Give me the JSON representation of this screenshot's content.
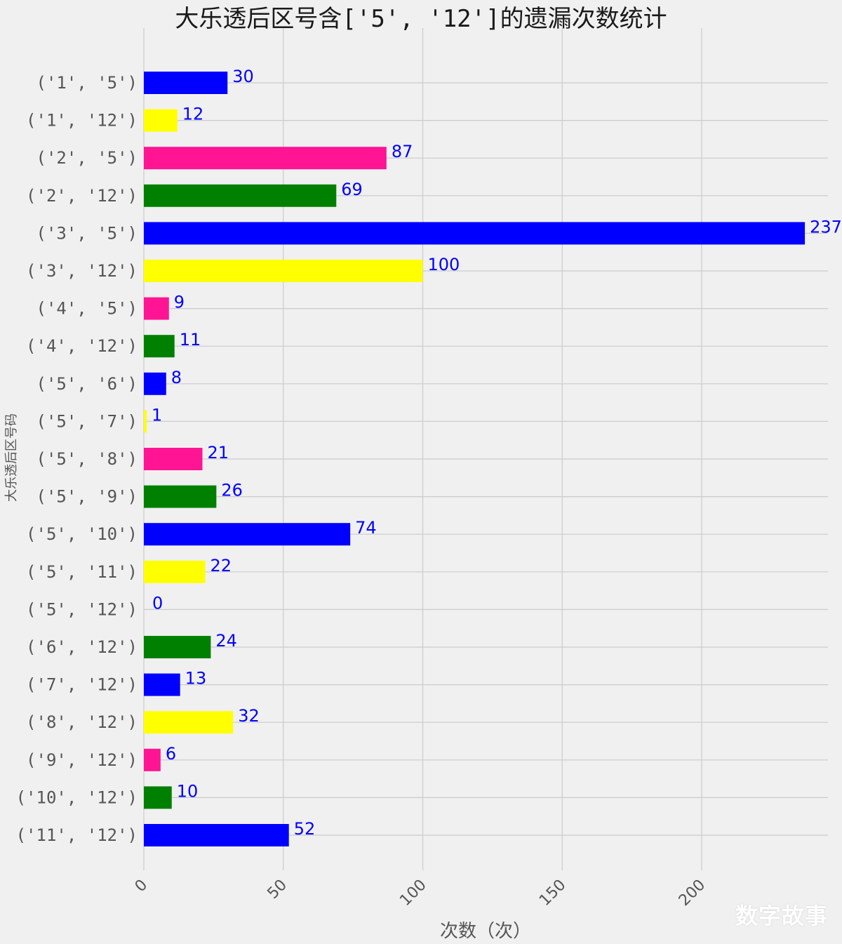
{
  "chart_data": {
    "type": "bar",
    "orientation": "horizontal",
    "title": "大乐透后区号含['5', '12']的遗漏次数统计",
    "xlabel": "次数（次）",
    "ylabel": "大乐透后区号码",
    "categories": [
      "('1', '5')",
      "('1', '12')",
      "('2', '5')",
      "('2', '12')",
      "('3', '5')",
      "('3', '12')",
      "('4', '5')",
      "('4', '12')",
      "('5', '6')",
      "('5', '7')",
      "('5', '8')",
      "('5', '9')",
      "('5', '10')",
      "('5', '11')",
      "('5', '12')",
      "('6', '12')",
      "('7', '12')",
      "('8', '12')",
      "('9', '12')",
      "('10', '12')",
      "('11', '12')"
    ],
    "values": [
      30,
      12,
      87,
      69,
      237,
      100,
      9,
      11,
      8,
      1,
      21,
      26,
      74,
      22,
      0,
      24,
      13,
      32,
      6,
      10,
      52
    ],
    "bar_colors": [
      "#0000ff",
      "#ffff00",
      "#ff1493",
      "#008000"
    ],
    "data_label_color": "#0000ff",
    "xticks": [
      0,
      50,
      100,
      150,
      200
    ],
    "xlim": [
      0,
      240
    ],
    "grid": true,
    "background": "#f0f0f0",
    "grid_color": "#cbcbcb"
  },
  "watermark": "数字故事"
}
